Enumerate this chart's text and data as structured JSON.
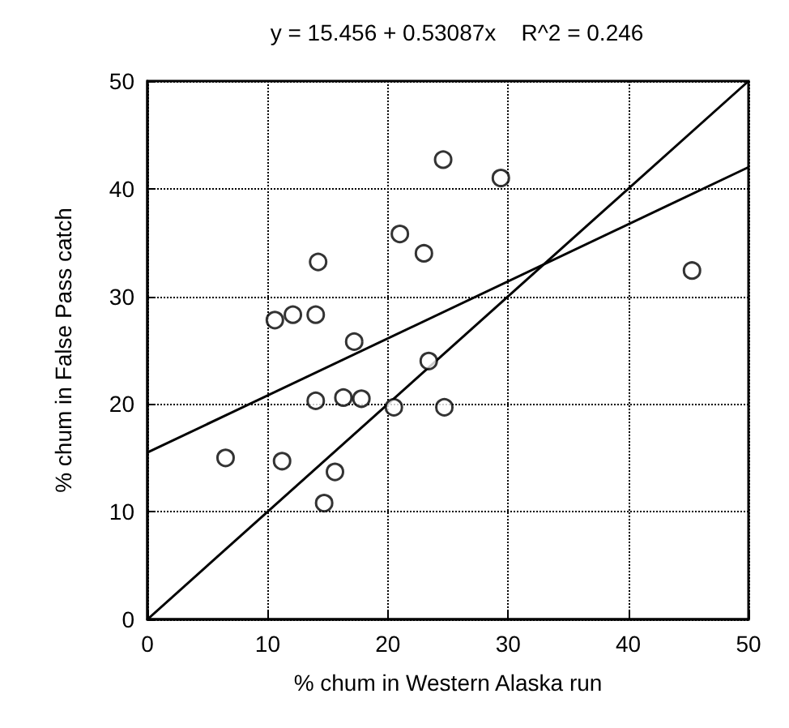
{
  "chart_data": {
    "type": "scatter",
    "title": "y = 15.456 + 0.53087x    R^2 = 0.246",
    "xlabel": "% chum in Western Alaska run",
    "ylabel": "% chum in False Pass catch",
    "xlim": [
      0,
      50
    ],
    "ylim": [
      0,
      50
    ],
    "xticks": [
      0,
      10,
      20,
      30,
      40,
      50
    ],
    "yticks": [
      0,
      10,
      20,
      30,
      40,
      50
    ],
    "grid": true,
    "marker": "circle",
    "series": [
      {
        "color": "#000000",
        "x": [
          6.5,
          11.2,
          10.6,
          12.1,
          14,
          14.2,
          14,
          14.7,
          15.6,
          16.3,
          17.2,
          17.8,
          20.5,
          21,
          23,
          23.4,
          24.6,
          24.7,
          29.4,
          45.3
        ],
        "values": [
          15,
          14.7,
          27.8,
          28.3,
          28.3,
          33.2,
          20.3,
          10.8,
          13.7,
          20.6,
          25.8,
          20.5,
          19.7,
          35.8,
          34,
          24,
          42.7,
          19.7,
          41,
          32.4
        ]
      },
      {
        "type": "line",
        "color": "#000000",
        "marker": "none",
        "x": [
          0,
          50
        ],
        "values": [
          15.5,
          42
        ]
      },
      {
        "type": "line",
        "color": "#000000",
        "marker": "none",
        "x": [
          0,
          50
        ],
        "values": [
          0,
          50
        ]
      }
    ]
  }
}
